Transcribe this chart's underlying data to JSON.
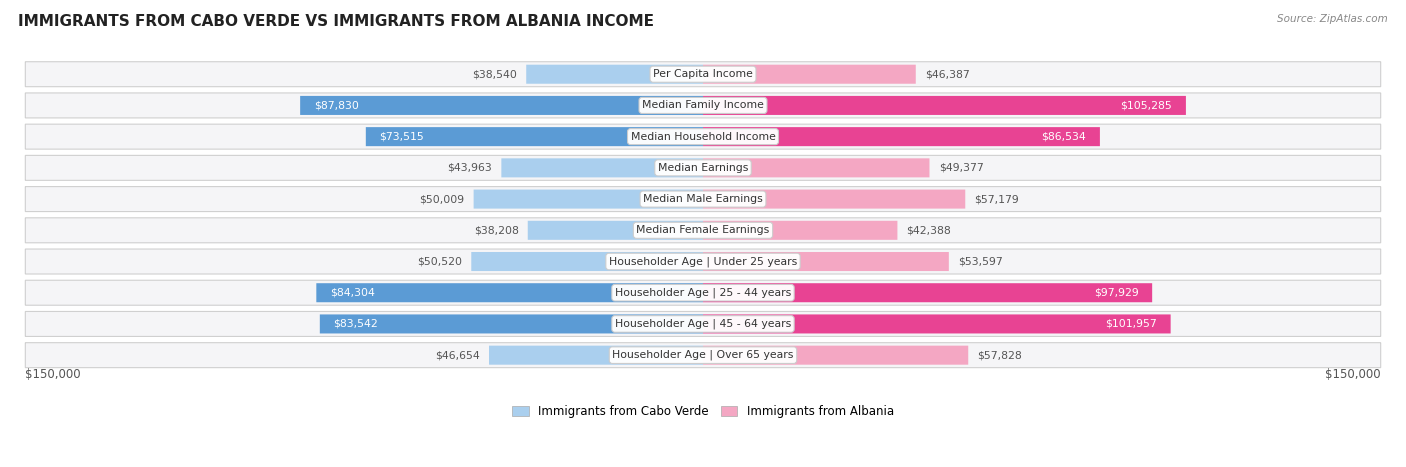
{
  "title": "IMMIGRANTS FROM CABO VERDE VS IMMIGRANTS FROM ALBANIA INCOME",
  "source": "Source: ZipAtlas.com",
  "categories": [
    "Per Capita Income",
    "Median Family Income",
    "Median Household Income",
    "Median Earnings",
    "Median Male Earnings",
    "Median Female Earnings",
    "Householder Age | Under 25 years",
    "Householder Age | 25 - 44 years",
    "Householder Age | 45 - 64 years",
    "Householder Age | Over 65 years"
  ],
  "cabo_verde_values": [
    38540,
    87830,
    73515,
    43963,
    50009,
    38208,
    50520,
    84304,
    83542,
    46654
  ],
  "albania_values": [
    46387,
    105285,
    86534,
    49377,
    57179,
    42388,
    53597,
    97929,
    101957,
    57828
  ],
  "cabo_verde_labels": [
    "$38,540",
    "$87,830",
    "$73,515",
    "$43,963",
    "$50,009",
    "$38,208",
    "$50,520",
    "$84,304",
    "$83,542",
    "$46,654"
  ],
  "albania_labels": [
    "$46,387",
    "$105,285",
    "$86,534",
    "$49,377",
    "$57,179",
    "$42,388",
    "$53,597",
    "$97,929",
    "$101,957",
    "$57,828"
  ],
  "cabo_verde_color_light": "#aacfee",
  "cabo_verde_color_dark": "#5b9bd5",
  "albania_color_light": "#f4a7c3",
  "albania_color_dark": "#e84393",
  "max_value": 150000,
  "xlabel_left": "$150,000",
  "xlabel_right": "$150,000",
  "legend_cabo_verde": "Immigrants from Cabo Verde",
  "legend_albania": "Immigrants from Albania",
  "cv_large_threshold": 65000,
  "al_large_threshold": 75000,
  "row_bg_color": "#f0f0f0",
  "text_dark": "#555555",
  "text_white": "#ffffff"
}
